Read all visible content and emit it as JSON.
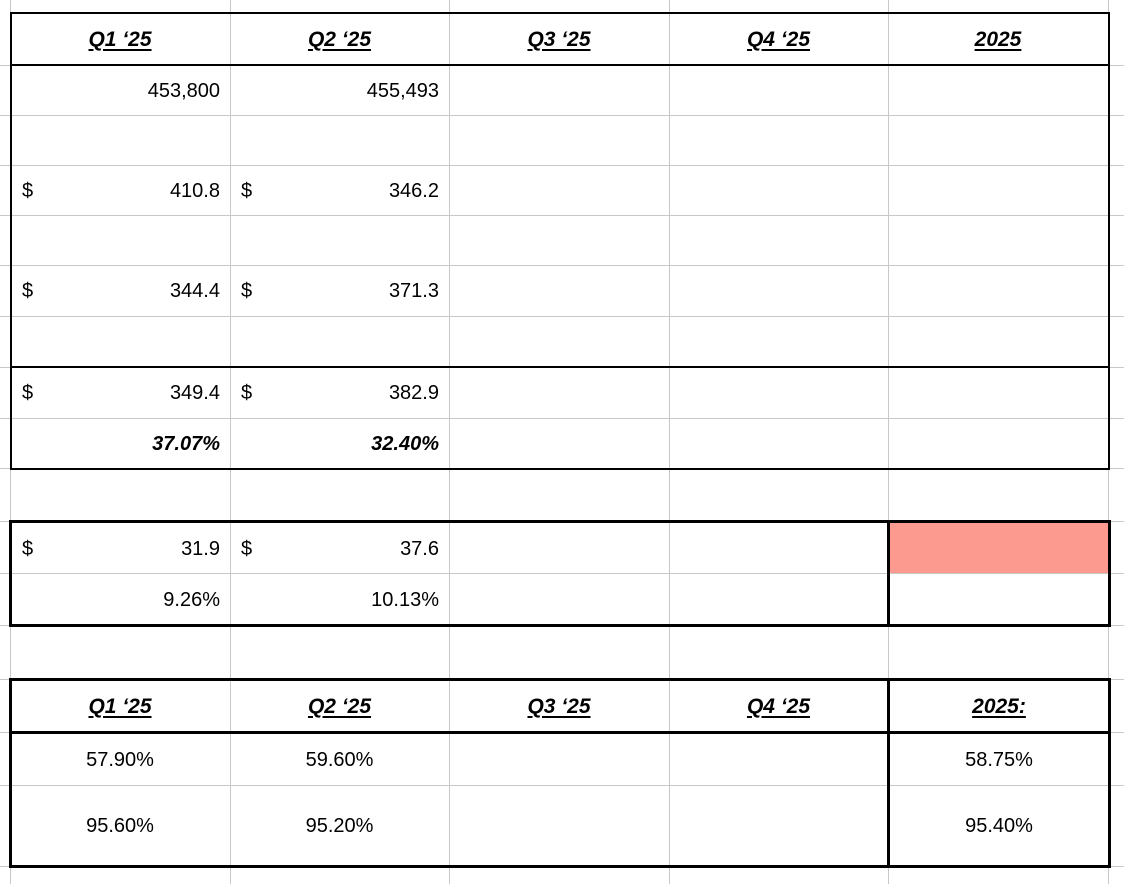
{
  "top_table": {
    "headers": [
      "Q1 ‘25",
      "Q2 ‘25",
      "Q3 ‘25",
      "Q4 ‘25",
      "2025"
    ],
    "rows": [
      {
        "q1": "453,800",
        "q2": "455,493"
      },
      {},
      {
        "q1_currency": "$",
        "q1": "410.8",
        "q2_currency": "$",
        "q2": "346.2"
      },
      {},
      {
        "q1_currency": "$",
        "q1": "344.4",
        "q2_currency": "$",
        "q2": "371.3"
      },
      {},
      {
        "q1_currency": "$",
        "q1": "349.4",
        "q2_currency": "$",
        "q2": "382.9"
      },
      {
        "q1": "37.07%",
        "q2": "32.40%"
      }
    ]
  },
  "middle_table": {
    "rows": [
      {
        "q1_currency": "$",
        "q1": "31.9",
        "q2_currency": "$",
        "q2": "37.6"
      },
      {
        "q1": "9.26%",
        "q2": "10.13%"
      }
    ],
    "highlight_color": "#fd9a8f"
  },
  "bottom_table": {
    "headers": [
      "Q1 ‘25",
      "Q2 ‘25",
      "Q3 ‘25",
      "Q4 ‘25",
      "2025:"
    ],
    "rows": [
      {
        "q1": "57.90%",
        "q2": "59.60%",
        "y2025": "58.75%"
      },
      {
        "q1": "95.60%",
        "q2": "95.20%",
        "y2025": "95.40%"
      }
    ]
  }
}
